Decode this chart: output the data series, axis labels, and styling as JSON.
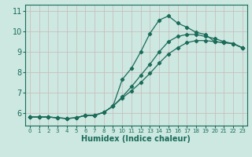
{
  "xlabel": "Humidex (Indice chaleur)",
  "xlim": [
    -0.5,
    23.5
  ],
  "ylim": [
    5.4,
    11.3
  ],
  "xticks": [
    0,
    1,
    2,
    3,
    4,
    5,
    6,
    7,
    8,
    9,
    10,
    11,
    12,
    13,
    14,
    15,
    16,
    17,
    18,
    19,
    20,
    21,
    22,
    23
  ],
  "yticks": [
    6,
    7,
    8,
    9,
    10,
    11
  ],
  "bg_color": "#cce8e0",
  "grid_color": "#c8b8b8",
  "line_color": "#1a6b5a",
  "curve1_x": [
    0,
    1,
    2,
    3,
    4,
    5,
    6,
    7,
    8,
    9,
    10,
    11,
    12,
    13,
    14,
    15,
    16,
    17,
    18,
    19,
    20,
    21,
    22,
    23
  ],
  "curve1_y": [
    5.82,
    5.82,
    5.82,
    5.78,
    5.75,
    5.78,
    5.9,
    5.9,
    6.05,
    6.35,
    7.65,
    8.2,
    9.0,
    9.9,
    10.55,
    10.75,
    10.4,
    10.2,
    9.95,
    9.85,
    9.5,
    9.45,
    9.4,
    9.2
  ],
  "curve2_x": [
    0,
    1,
    2,
    3,
    4,
    5,
    6,
    7,
    8,
    9,
    10,
    11,
    12,
    13,
    14,
    15,
    16,
    17,
    18,
    19,
    20,
    21,
    22,
    23
  ],
  "curve2_y": [
    5.82,
    5.82,
    5.82,
    5.78,
    5.75,
    5.78,
    5.9,
    5.9,
    6.05,
    6.35,
    6.8,
    7.3,
    7.85,
    8.4,
    9.0,
    9.5,
    9.75,
    9.85,
    9.85,
    9.75,
    9.65,
    9.5,
    9.4,
    9.2
  ],
  "curve3_x": [
    0,
    1,
    2,
    3,
    4,
    5,
    6,
    7,
    8,
    9,
    10,
    11,
    12,
    13,
    14,
    15,
    16,
    17,
    18,
    19,
    20,
    21,
    22,
    23
  ],
  "curve3_y": [
    5.82,
    5.82,
    5.82,
    5.78,
    5.75,
    5.78,
    5.9,
    5.9,
    6.05,
    6.35,
    6.75,
    7.1,
    7.5,
    7.95,
    8.45,
    8.9,
    9.2,
    9.45,
    9.55,
    9.55,
    9.5,
    9.45,
    9.4,
    9.2
  ]
}
